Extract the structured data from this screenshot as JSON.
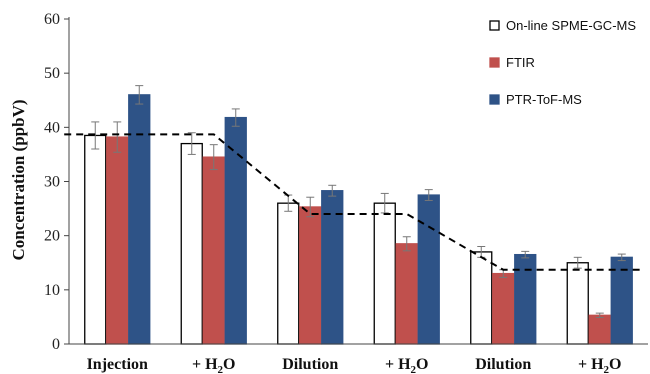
{
  "chart_data": {
    "type": "bar",
    "categories": [
      "Injection",
      "+ H2O",
      "Dilution",
      "+ H2O",
      "Dilution",
      "+ H2O"
    ],
    "category_labels": [
      {
        "main": "Injection",
        "sub": "",
        "tail": ""
      },
      {
        "main": "+ H",
        "sub": "2",
        "tail": "O"
      },
      {
        "main": "Dilution",
        "sub": "",
        "tail": ""
      },
      {
        "main": "+ H",
        "sub": "2",
        "tail": "O"
      },
      {
        "main": "Dilution",
        "sub": "",
        "tail": ""
      },
      {
        "main": "+ H",
        "sub": "2",
        "tail": "O"
      }
    ],
    "ylabel": "Concentration (ppbV)",
    "ylim": [
      0,
      60
    ],
    "yticks": [
      0,
      10,
      20,
      30,
      40,
      50,
      60
    ],
    "legend_position": "top-right",
    "grid": false,
    "series": [
      {
        "name": "On-line SPME-GC-MS",
        "fill": "#ffffff",
        "stroke": "#000000",
        "values": [
          38.5,
          37.0,
          26.0,
          26.0,
          17.0,
          15.0
        ],
        "errors": [
          2.5,
          2.0,
          1.5,
          1.8,
          1.0,
          1.0
        ]
      },
      {
        "name": "FTIR",
        "fill": "#c0504d",
        "stroke": "#c0504d",
        "values": [
          38.2,
          34.5,
          25.3,
          18.5,
          13.0,
          5.3
        ],
        "errors": [
          2.8,
          2.3,
          1.8,
          1.3,
          0.7,
          0.4
        ]
      },
      {
        "name": "PTR-ToF-MS",
        "fill": "#2e5387",
        "stroke": "#2e5387",
        "values": [
          46.0,
          41.8,
          28.3,
          27.5,
          16.5,
          16.0
        ],
        "errors": [
          1.7,
          1.6,
          1.0,
          1.0,
          0.6,
          0.6
        ]
      }
    ],
    "reference_line": {
      "style": "dashed",
      "color": "#000000",
      "points": [
        [
          -0.55,
          38.7
        ],
        [
          1.0,
          38.7
        ],
        [
          2.0,
          24.0
        ],
        [
          3.0,
          24.0
        ],
        [
          4.0,
          13.7
        ],
        [
          5.45,
          13.7
        ]
      ]
    }
  }
}
